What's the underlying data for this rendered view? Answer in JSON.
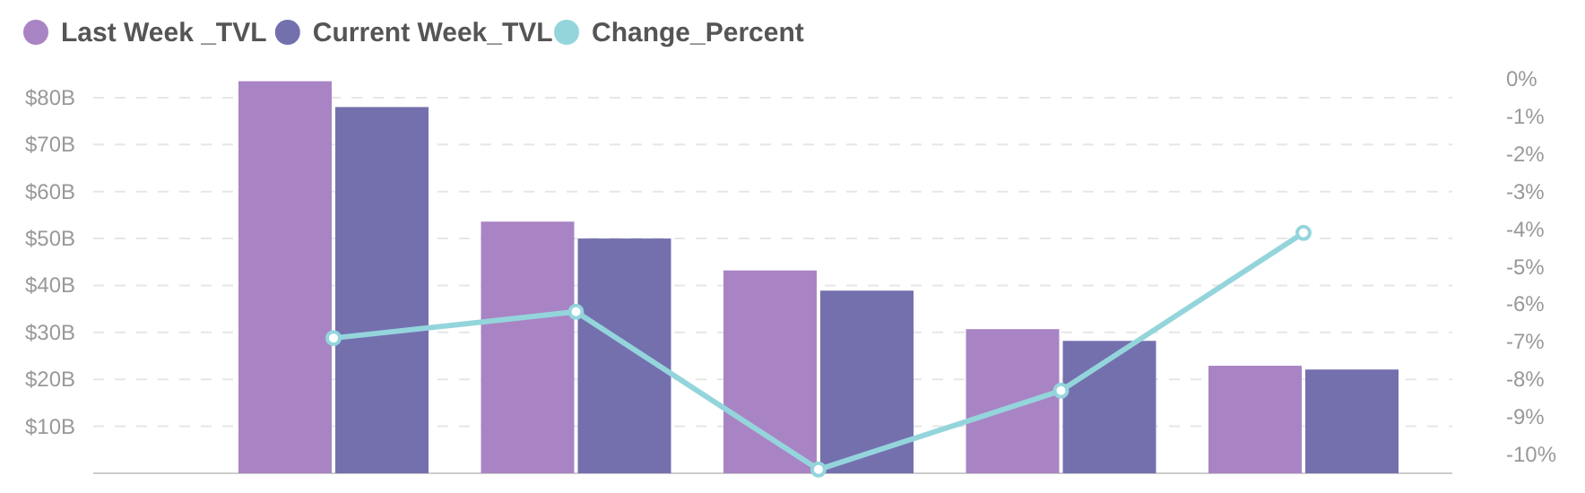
{
  "chart_data": {
    "type": "bar",
    "categories": [
      null,
      null,
      null,
      null,
      null
    ],
    "series": [
      {
        "name": "Last Week _TVL",
        "color": "#a984c4",
        "values": [
          83.5,
          53.6,
          43.2,
          30.7,
          22.9
        ]
      },
      {
        "name": "Current Week_TVL",
        "color": "#7470ae",
        "values": [
          78,
          50,
          38.9,
          28.2,
          22.1
        ]
      },
      {
        "name": "Change_Percent",
        "type": "line",
        "axis": "y2",
        "color": "#94d5dc",
        "values": [
          -6.9,
          -6.2,
          -10.4,
          -8.3,
          -4.1
        ]
      }
    ],
    "ylim": [
      0,
      84
    ],
    "yticks": [
      {
        "value": 10,
        "label": "$10B"
      },
      {
        "value": 20,
        "label": "$20B"
      },
      {
        "value": 30,
        "label": "$30B"
      },
      {
        "value": 40,
        "label": "$40B"
      },
      {
        "value": 50,
        "label": "$50B"
      },
      {
        "value": 60,
        "label": "$60B"
      },
      {
        "value": 70,
        "label": "$70B"
      },
      {
        "value": 80,
        "label": "$80B"
      }
    ],
    "y2lim": [
      -10.5,
      0
    ],
    "y2ticks": [
      {
        "value": 0,
        "label": "0%"
      },
      {
        "value": -1,
        "label": "-1%"
      },
      {
        "value": -2,
        "label": "-2%"
      },
      {
        "value": -3,
        "label": "-3%"
      },
      {
        "value": -4,
        "label": "-4%"
      },
      {
        "value": -5,
        "label": "-5%"
      },
      {
        "value": -6,
        "label": "-6%"
      },
      {
        "value": -7,
        "label": "-7%"
      },
      {
        "value": -8,
        "label": "-8%"
      },
      {
        "value": -9,
        "label": "-9%"
      },
      {
        "value": -10,
        "label": "-10%"
      }
    ],
    "grid": "y",
    "legend": "top left",
    "marker": "circle"
  }
}
